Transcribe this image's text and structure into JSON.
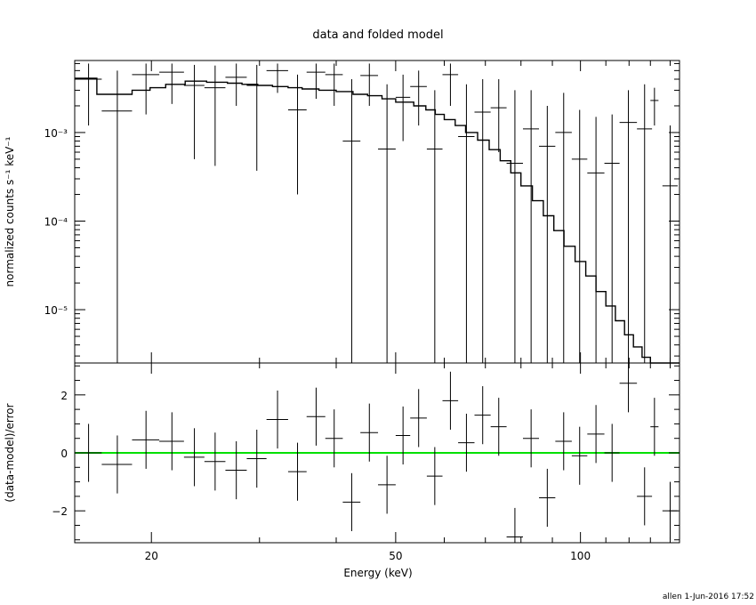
{
  "chart_data": {
    "title": "data and folded model",
    "footer": "allen   1-Jun-2016 17:52",
    "xlabel": "Energy (keV)",
    "x_scale": "log",
    "xlim": [
      15,
      145
    ],
    "x_ticks": [
      {
        "value": 20,
        "label": "20"
      },
      {
        "value": 50,
        "label": "50"
      },
      {
        "value": 100,
        "label": "100"
      }
    ],
    "panels": [
      {
        "name": "spectrum",
        "type": "step-with-errorbars",
        "ylabel": "normalized counts s⁻¹ keV⁻¹",
        "y_scale": "log",
        "ylim": [
          2.5e-06,
          0.0065
        ],
        "y_ticks": [
          {
            "value": 0.001,
            "label": "10⁻³"
          },
          {
            "value": 0.0001,
            "label": "10⁻⁴"
          },
          {
            "value": 1e-05,
            "label": "10⁻⁵"
          }
        ],
        "data_points": [
          {
            "x": 15.8,
            "xerr": [
              15.0,
              16.6
            ],
            "y": 0.004,
            "ylo": 0.0012,
            "yhi": 0.006
          },
          {
            "x": 17.6,
            "xerr": [
              16.6,
              18.6
            ],
            "y": 0.00175,
            "ylo": 2.5e-06,
            "yhi": 0.005
          },
          {
            "x": 19.6,
            "xerr": [
              18.6,
              20.6
            ],
            "y": 0.0045,
            "ylo": 0.0016,
            "yhi": 0.006
          },
          {
            "x": 21.6,
            "xerr": [
              20.6,
              22.6
            ],
            "y": 0.0048,
            "ylo": 0.0021,
            "yhi": 0.006
          },
          {
            "x": 23.5,
            "xerr": [
              22.6,
              24.4
            ],
            "y": 0.0034,
            "ylo": 0.0005,
            "yhi": 0.0058
          },
          {
            "x": 25.4,
            "xerr": [
              24.4,
              26.4
            ],
            "y": 0.0032,
            "ylo": 0.00042,
            "yhi": 0.0057
          },
          {
            "x": 27.5,
            "xerr": [
              26.4,
              28.6
            ],
            "y": 0.0042,
            "ylo": 0.002,
            "yhi": 0.006
          },
          {
            "x": 29.7,
            "xerr": [
              28.6,
              30.8
            ],
            "y": 0.0034,
            "ylo": 0.00037,
            "yhi": 0.0058
          },
          {
            "x": 32.1,
            "xerr": [
              30.8,
              33.4
            ],
            "y": 0.005,
            "ylo": 0.0028,
            "yhi": 0.006
          },
          {
            "x": 34.6,
            "xerr": [
              33.4,
              35.8
            ],
            "y": 0.0018,
            "ylo": 0.0002,
            "yhi": 0.0045
          },
          {
            "x": 37.1,
            "xerr": [
              35.8,
              38.4
            ],
            "y": 0.0048,
            "ylo": 0.0024,
            "yhi": 0.006
          },
          {
            "x": 39.7,
            "xerr": [
              38.4,
              41.0
            ],
            "y": 0.0045,
            "ylo": 0.002,
            "yhi": 0.006
          },
          {
            "x": 42.4,
            "xerr": [
              41.0,
              43.8
            ],
            "y": 0.0008,
            "ylo": 2.5e-06,
            "yhi": 0.004
          },
          {
            "x": 45.3,
            "xerr": [
              43.8,
              46.8
            ],
            "y": 0.0044,
            "ylo": 0.002,
            "yhi": 0.006
          },
          {
            "x": 48.4,
            "xerr": [
              46.8,
              50.0
            ],
            "y": 0.00065,
            "ylo": 2.5e-06,
            "yhi": 0.0035
          },
          {
            "x": 51.4,
            "xerr": [
              50.0,
              52.8
            ],
            "y": 0.0025,
            "ylo": 0.0008,
            "yhi": 0.0045
          },
          {
            "x": 54.5,
            "xerr": [
              52.8,
              56.2
            ],
            "y": 0.0033,
            "ylo": 0.0012,
            "yhi": 0.005
          },
          {
            "x": 57.9,
            "xerr": [
              56.2,
              59.6
            ],
            "y": 0.00065,
            "ylo": 2.5e-06,
            "yhi": 0.003
          },
          {
            "x": 61.4,
            "xerr": [
              59.6,
              63.2
            ],
            "y": 0.0045,
            "ylo": 0.002,
            "yhi": 0.006
          },
          {
            "x": 65.2,
            "xerr": [
              63.2,
              67.2
            ],
            "y": 0.0009,
            "ylo": 2.5e-06,
            "yhi": 0.0035
          },
          {
            "x": 69.3,
            "xerr": [
              67.2,
              71.4
            ],
            "y": 0.0017,
            "ylo": 2.5e-06,
            "yhi": 0.004
          },
          {
            "x": 73.6,
            "xerr": [
              71.4,
              75.8
            ],
            "y": 0.0019,
            "ylo": 0.0006,
            "yhi": 0.004
          },
          {
            "x": 78.2,
            "xerr": [
              75.8,
              80.6
            ],
            "y": 0.00045,
            "ylo": 2.5e-06,
            "yhi": 0.003
          },
          {
            "x": 83.1,
            "xerr": [
              80.6,
              85.6
            ],
            "y": 0.0011,
            "ylo": 2.5e-06,
            "yhi": 0.003
          },
          {
            "x": 88.3,
            "xerr": [
              85.6,
              91.0
            ],
            "y": 0.0007,
            "ylo": 2.5e-06,
            "yhi": 0.002
          },
          {
            "x": 93.9,
            "xerr": [
              91.0,
              96.8
            ],
            "y": 0.001,
            "ylo": 2.5e-06,
            "yhi": 0.0028
          },
          {
            "x": 99.7,
            "xerr": [
              96.8,
              102.6
            ],
            "y": 0.0005,
            "ylo": 2.5e-06,
            "yhi": 0.0018
          },
          {
            "x": 106.0,
            "xerr": [
              102.6,
              109.4
            ],
            "y": 0.00035,
            "ylo": 2.5e-06,
            "yhi": 0.0015
          },
          {
            "x": 112.6,
            "xerr": [
              109.4,
              115.8
            ],
            "y": 0.00045,
            "ylo": 2.5e-06,
            "yhi": 0.0016
          },
          {
            "x": 119.7,
            "xerr": [
              115.8,
              123.6
            ],
            "y": 0.0013,
            "ylo": 2.5e-06,
            "yhi": 0.003
          },
          {
            "x": 127.2,
            "xerr": [
              123.6,
              130.8
            ],
            "y": 0.0011,
            "ylo": 2.5e-06,
            "yhi": 0.0035
          },
          {
            "x": 132.0,
            "xerr": [
              130.0,
              134.0
            ],
            "y": 0.0023,
            "ylo": 0.0012,
            "yhi": 0.0032
          },
          {
            "x": 140.0,
            "xerr": [
              136.0,
              144.0
            ],
            "y": 0.00025,
            "ylo": 2.5e-06,
            "yhi": 0.0012
          }
        ],
        "model_steps": [
          [
            15.0,
            0.0041
          ],
          [
            16.3,
            0.0027
          ],
          [
            18.6,
            0.003
          ],
          [
            19.9,
            0.0032
          ],
          [
            21.1,
            0.0035
          ],
          [
            22.7,
            0.0038
          ],
          [
            24.6,
            0.0037
          ],
          [
            26.6,
            0.0036
          ],
          [
            28.1,
            0.0035
          ],
          [
            29.8,
            0.0034
          ],
          [
            31.5,
            0.0033
          ],
          [
            33.4,
            0.0032
          ],
          [
            35.2,
            0.0031
          ],
          [
            37.5,
            0.003
          ],
          [
            40.0,
            0.0029
          ],
          [
            42.6,
            0.0027
          ],
          [
            45.0,
            0.0026
          ],
          [
            47.5,
            0.0024
          ],
          [
            50.0,
            0.0022
          ],
          [
            53.5,
            0.002
          ],
          [
            56.0,
            0.0018
          ],
          [
            58.0,
            0.0016
          ],
          [
            60.0,
            0.0014
          ],
          [
            62.5,
            0.0012
          ],
          [
            65.0,
            0.001
          ],
          [
            68.0,
            0.00082
          ],
          [
            71.0,
            0.00064
          ],
          [
            74.0,
            0.00048
          ],
          [
            77.0,
            0.00035
          ],
          [
            80.0,
            0.00025
          ],
          [
            83.5,
            0.00017
          ],
          [
            87.0,
            0.000115
          ],
          [
            90.5,
            7.8e-05
          ],
          [
            94.0,
            5.2e-05
          ],
          [
            98.0,
            3.5e-05
          ],
          [
            102.0,
            2.4e-05
          ],
          [
            106.0,
            1.6e-05
          ],
          [
            110.0,
            1.1e-05
          ],
          [
            114.0,
            7.5e-06
          ],
          [
            118.0,
            5.2e-06
          ],
          [
            122.0,
            3.8e-06
          ],
          [
            126.0,
            2.9e-06
          ],
          [
            130.0,
            2.5e-06
          ],
          [
            145.0,
            2.5e-06
          ]
        ]
      },
      {
        "name": "residuals",
        "type": "errorbars",
        "ylabel": "(data-model)/error",
        "y_scale": "linear",
        "ylim": [
          -3.1,
          3.1
        ],
        "y_ticks": [
          {
            "value": 2,
            "label": "2"
          },
          {
            "value": 0,
            "label": "0"
          },
          {
            "value": -2,
            "label": "−2"
          }
        ],
        "zero_line_color": "#00e000",
        "data_points": [
          {
            "x": 15.8,
            "xerr": [
              15.0,
              16.6
            ],
            "y": 0.0,
            "yerr": 1.0
          },
          {
            "x": 17.6,
            "xerr": [
              16.6,
              18.6
            ],
            "y": -0.4,
            "yerr": 1.0
          },
          {
            "x": 19.6,
            "xerr": [
              18.6,
              20.6
            ],
            "y": 0.45,
            "yerr": 1.0
          },
          {
            "x": 21.6,
            "xerr": [
              20.6,
              22.6
            ],
            "y": 0.4,
            "yerr": 1.0
          },
          {
            "x": 23.5,
            "xerr": [
              22.6,
              24.4
            ],
            "y": -0.15,
            "yerr": 1.0
          },
          {
            "x": 25.4,
            "xerr": [
              24.4,
              26.4
            ],
            "y": -0.3,
            "yerr": 1.0
          },
          {
            "x": 27.5,
            "xerr": [
              26.4,
              28.6
            ],
            "y": -0.6,
            "yerr": 1.0
          },
          {
            "x": 29.7,
            "xerr": [
              28.6,
              30.8
            ],
            "y": -0.2,
            "yerr": 1.0
          },
          {
            "x": 32.1,
            "xerr": [
              30.8,
              33.4
            ],
            "y": 1.15,
            "yerr": 1.0
          },
          {
            "x": 34.6,
            "xerr": [
              33.4,
              35.8
            ],
            "y": -0.65,
            "yerr": 1.0
          },
          {
            "x": 37.1,
            "xerr": [
              35.8,
              38.4
            ],
            "y": 1.25,
            "yerr": 1.0
          },
          {
            "x": 39.7,
            "xerr": [
              38.4,
              41.0
            ],
            "y": 0.5,
            "yerr": 1.0
          },
          {
            "x": 42.4,
            "xerr": [
              41.0,
              43.8
            ],
            "y": -1.7,
            "yerr": 1.0
          },
          {
            "x": 45.3,
            "xerr": [
              43.8,
              46.8
            ],
            "y": 0.7,
            "yerr": 1.0
          },
          {
            "x": 48.4,
            "xerr": [
              46.8,
              50.0
            ],
            "y": -1.1,
            "yerr": 1.0
          },
          {
            "x": 51.4,
            "xerr": [
              50.0,
              52.8
            ],
            "y": 0.6,
            "yerr": 1.0
          },
          {
            "x": 54.5,
            "xerr": [
              52.8,
              56.2
            ],
            "y": 1.2,
            "yerr": 1.0
          },
          {
            "x": 57.9,
            "xerr": [
              56.2,
              59.6
            ],
            "y": -0.8,
            "yerr": 1.0
          },
          {
            "x": 61.4,
            "xerr": [
              59.6,
              63.2
            ],
            "y": 1.8,
            "yerr": 1.0
          },
          {
            "x": 65.2,
            "xerr": [
              63.2,
              67.2
            ],
            "y": 0.35,
            "yerr": 1.0
          },
          {
            "x": 69.3,
            "xerr": [
              67.2,
              71.4
            ],
            "y": 1.3,
            "yerr": 1.0
          },
          {
            "x": 73.6,
            "xerr": [
              71.4,
              75.8
            ],
            "y": 0.9,
            "yerr": 1.0
          },
          {
            "x": 78.2,
            "xerr": [
              75.8,
              80.6
            ],
            "y": -2.9,
            "yerr": 1.0
          },
          {
            "x": 83.1,
            "xerr": [
              80.6,
              85.6
            ],
            "y": 0.5,
            "yerr": 1.0
          },
          {
            "x": 88.3,
            "xerr": [
              85.6,
              91.0
            ],
            "y": -1.55,
            "yerr": 1.0
          },
          {
            "x": 93.9,
            "xerr": [
              91.0,
              96.8
            ],
            "y": 0.4,
            "yerr": 1.0
          },
          {
            "x": 99.7,
            "xerr": [
              96.8,
              102.6
            ],
            "y": -0.1,
            "yerr": 1.0
          },
          {
            "x": 106.0,
            "xerr": [
              102.6,
              109.4
            ],
            "y": 0.65,
            "yerr": 1.0
          },
          {
            "x": 112.6,
            "xerr": [
              109.4,
              115.8
            ],
            "y": 0.0,
            "yerr": 1.0
          },
          {
            "x": 119.7,
            "xerr": [
              115.8,
              123.6
            ],
            "y": 2.4,
            "yerr": 1.0
          },
          {
            "x": 127.2,
            "xerr": [
              123.6,
              130.8
            ],
            "y": -1.5,
            "yerr": 1.0
          },
          {
            "x": 132.0,
            "xerr": [
              130.0,
              134.0
            ],
            "y": 0.9,
            "yerr": 1.0
          },
          {
            "x": 140.0,
            "xerr": [
              136.0,
              144.0
            ],
            "y": -2.0,
            "yerr": 1.0
          }
        ]
      }
    ]
  }
}
